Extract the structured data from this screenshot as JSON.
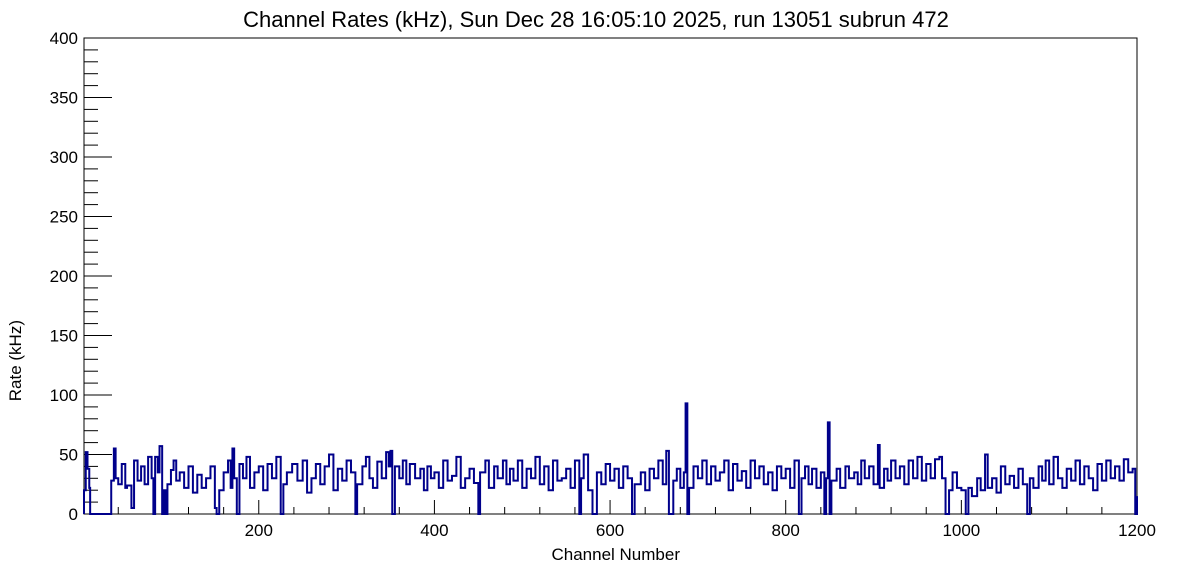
{
  "chart_data": {
    "type": "line",
    "title": "Channel Rates (kHz), Sun Dec 28 16:05:10 2025, run 13051 subrun 472",
    "xlabel": "Channel Number",
    "ylabel": "Rate (kHz)",
    "xlim": [
      1,
      1200
    ],
    "ylim": [
      0,
      400
    ],
    "x_ticks": [
      200,
      400,
      600,
      800,
      1000,
      1200
    ],
    "y_ticks": [
      0,
      50,
      100,
      150,
      200,
      250,
      300,
      350,
      400
    ],
    "grid": false,
    "histogram": true,
    "line_color": "#00008b",
    "series": [
      {
        "channels_range": [
          1,
          1200
        ],
        "typical_rate": 25,
        "values": [
          [
            1,
            20
          ],
          [
            3,
            52
          ],
          [
            5,
            38
          ],
          [
            7,
            22
          ],
          [
            8,
            0
          ],
          [
            30,
            0
          ],
          [
            32,
            28
          ],
          [
            35,
            55
          ],
          [
            37,
            30
          ],
          [
            40,
            25
          ],
          [
            44,
            42
          ],
          [
            48,
            22
          ],
          [
            50,
            24
          ],
          [
            55,
            5
          ],
          [
            58,
            45
          ],
          [
            62,
            28
          ],
          [
            66,
            40
          ],
          [
            70,
            25
          ],
          [
            74,
            48
          ],
          [
            78,
            30
          ],
          [
            80,
            0
          ],
          [
            82,
            48
          ],
          [
            85,
            35
          ],
          [
            87,
            57
          ],
          [
            90,
            0
          ],
          [
            92,
            20
          ],
          [
            94,
            0
          ],
          [
            96,
            25
          ],
          [
            100,
            37
          ],
          [
            103,
            45
          ],
          [
            106,
            28
          ],
          [
            110,
            35
          ],
          [
            115,
            22
          ],
          [
            120,
            40
          ],
          [
            125,
            18
          ],
          [
            130,
            33
          ],
          [
            135,
            22
          ],
          [
            140,
            30
          ],
          [
            145,
            40
          ],
          [
            150,
            5
          ],
          [
            152,
            0
          ],
          [
            155,
            20
          ],
          [
            160,
            35
          ],
          [
            165,
            45
          ],
          [
            168,
            22
          ],
          [
            170,
            55
          ],
          [
            172,
            30
          ],
          [
            175,
            0
          ],
          [
            178,
            42
          ],
          [
            182,
            30
          ],
          [
            186,
            48
          ],
          [
            190,
            22
          ],
          [
            195,
            35
          ],
          [
            200,
            40
          ],
          [
            205,
            20
          ],
          [
            210,
            42
          ],
          [
            215,
            30
          ],
          [
            220,
            48
          ],
          [
            225,
            0
          ],
          [
            228,
            25
          ],
          [
            232,
            35
          ],
          [
            238,
            42
          ],
          [
            244,
            28
          ],
          [
            250,
            45
          ],
          [
            255,
            18
          ],
          [
            260,
            30
          ],
          [
            265,
            42
          ],
          [
            270,
            25
          ],
          [
            275,
            40
          ],
          [
            280,
            50
          ],
          [
            285,
            20
          ],
          [
            290,
            38
          ],
          [
            295,
            28
          ],
          [
            300,
            45
          ],
          [
            305,
            35
          ],
          [
            310,
            0
          ],
          [
            312,
            25
          ],
          [
            318,
            40
          ],
          [
            322,
            48
          ],
          [
            326,
            30
          ],
          [
            330,
            22
          ],
          [
            335,
            44
          ],
          [
            340,
            30
          ],
          [
            345,
            52
          ],
          [
            348,
            40
          ],
          [
            350,
            53
          ],
          [
            352,
            0
          ],
          [
            355,
            40
          ],
          [
            360,
            30
          ],
          [
            364,
            45
          ],
          [
            368,
            25
          ],
          [
            372,
            42
          ],
          [
            378,
            30
          ],
          [
            384,
            38
          ],
          [
            388,
            20
          ],
          [
            392,
            40
          ],
          [
            396,
            30
          ],
          [
            400,
            35
          ],
          [
            405,
            22
          ],
          [
            410,
            45
          ],
          [
            415,
            28
          ],
          [
            420,
            32
          ],
          [
            425,
            48
          ],
          [
            430,
            22
          ],
          [
            435,
            30
          ],
          [
            440,
            38
          ],
          [
            445,
            26
          ],
          [
            450,
            0
          ],
          [
            452,
            35
          ],
          [
            458,
            45
          ],
          [
            462,
            22
          ],
          [
            468,
            40
          ],
          [
            472,
            30
          ],
          [
            478,
            45
          ],
          [
            482,
            25
          ],
          [
            486,
            38
          ],
          [
            490,
            28
          ],
          [
            495,
            45
          ],
          [
            500,
            22
          ],
          [
            505,
            38
          ],
          [
            510,
            30
          ],
          [
            515,
            48
          ],
          [
            520,
            25
          ],
          [
            525,
            40
          ],
          [
            530,
            20
          ],
          [
            535,
            45
          ],
          [
            540,
            28
          ],
          [
            545,
            30
          ],
          [
            550,
            38
          ],
          [
            555,
            22
          ],
          [
            560,
            45
          ],
          [
            565,
            0
          ],
          [
            567,
            30
          ],
          [
            570,
            50
          ],
          [
            575,
            20
          ],
          [
            580,
            0
          ],
          [
            585,
            35
          ],
          [
            590,
            25
          ],
          [
            595,
            42
          ],
          [
            600,
            28
          ],
          [
            605,
            38
          ],
          [
            610,
            22
          ],
          [
            615,
            40
          ],
          [
            620,
            30
          ],
          [
            625,
            0
          ],
          [
            628,
            25
          ],
          [
            635,
            35
          ],
          [
            640,
            20
          ],
          [
            645,
            38
          ],
          [
            650,
            30
          ],
          [
            655,
            45
          ],
          [
            660,
            25
          ],
          [
            664,
            53
          ],
          [
            667,
            0
          ],
          [
            672,
            28
          ],
          [
            676,
            38
          ],
          [
            680,
            22
          ],
          [
            684,
            35
          ],
          [
            686,
            93
          ],
          [
            688,
            0
          ],
          [
            690,
            22
          ],
          [
            695,
            40
          ],
          [
            700,
            30
          ],
          [
            705,
            45
          ],
          [
            710,
            25
          ],
          [
            715,
            40
          ],
          [
            720,
            28
          ],
          [
            725,
            35
          ],
          [
            730,
            45
          ],
          [
            735,
            20
          ],
          [
            740,
            42
          ],
          [
            745,
            28
          ],
          [
            750,
            36
          ],
          [
            755,
            22
          ],
          [
            760,
            45
          ],
          [
            765,
            30
          ],
          [
            770,
            40
          ],
          [
            775,
            25
          ],
          [
            780,
            35
          ],
          [
            785,
            20
          ],
          [
            790,
            40
          ],
          [
            795,
            30
          ],
          [
            800,
            38
          ],
          [
            805,
            22
          ],
          [
            810,
            45
          ],
          [
            815,
            0
          ],
          [
            818,
            30
          ],
          [
            822,
            40
          ],
          [
            826,
            25
          ],
          [
            830,
            38
          ],
          [
            835,
            22
          ],
          [
            840,
            35
          ],
          [
            844,
            0
          ],
          [
            846,
            30
          ],
          [
            848,
            77
          ],
          [
            850,
            0
          ],
          [
            852,
            28
          ],
          [
            858,
            38
          ],
          [
            862,
            22
          ],
          [
            868,
            40
          ],
          [
            872,
            30
          ],
          [
            878,
            35
          ],
          [
            882,
            25
          ],
          [
            886,
            45
          ],
          [
            890,
            30
          ],
          [
            895,
            40
          ],
          [
            900,
            25
          ],
          [
            905,
            58
          ],
          [
            907,
            22
          ],
          [
            912,
            38
          ],
          [
            916,
            28
          ],
          [
            920,
            45
          ],
          [
            925,
            30
          ],
          [
            930,
            40
          ],
          [
            935,
            25
          ],
          [
            940,
            45
          ],
          [
            945,
            30
          ],
          [
            950,
            48
          ],
          [
            955,
            28
          ],
          [
            960,
            42
          ],
          [
            965,
            30
          ],
          [
            970,
            46
          ],
          [
            975,
            48
          ],
          [
            978,
            30
          ],
          [
            982,
            0
          ],
          [
            986,
            20
          ],
          [
            990,
            35
          ],
          [
            995,
            22
          ],
          [
            1000,
            20
          ],
          [
            1005,
            0
          ],
          [
            1008,
            22
          ],
          [
            1012,
            15
          ],
          [
            1018,
            30
          ],
          [
            1022,
            20
          ],
          [
            1027,
            50
          ],
          [
            1030,
            22
          ],
          [
            1035,
            30
          ],
          [
            1040,
            18
          ],
          [
            1045,
            40
          ],
          [
            1050,
            25
          ],
          [
            1055,
            32
          ],
          [
            1060,
            22
          ],
          [
            1065,
            38
          ],
          [
            1070,
            25
          ],
          [
            1075,
            0
          ],
          [
            1078,
            30
          ],
          [
            1082,
            22
          ],
          [
            1088,
            40
          ],
          [
            1092,
            28
          ],
          [
            1096,
            45
          ],
          [
            1100,
            25
          ],
          [
            1105,
            48
          ],
          [
            1110,
            30
          ],
          [
            1115,
            22
          ],
          [
            1120,
            38
          ],
          [
            1125,
            28
          ],
          [
            1130,
            45
          ],
          [
            1135,
            25
          ],
          [
            1140,
            40
          ],
          [
            1145,
            30
          ],
          [
            1150,
            20
          ],
          [
            1155,
            42
          ],
          [
            1160,
            28
          ],
          [
            1165,
            45
          ],
          [
            1170,
            30
          ],
          [
            1175,
            40
          ],
          [
            1180,
            28
          ],
          [
            1185,
            46
          ],
          [
            1190,
            35
          ],
          [
            1195,
            38
          ],
          [
            1198,
            0
          ],
          [
            1200,
            15
          ]
        ]
      }
    ]
  }
}
